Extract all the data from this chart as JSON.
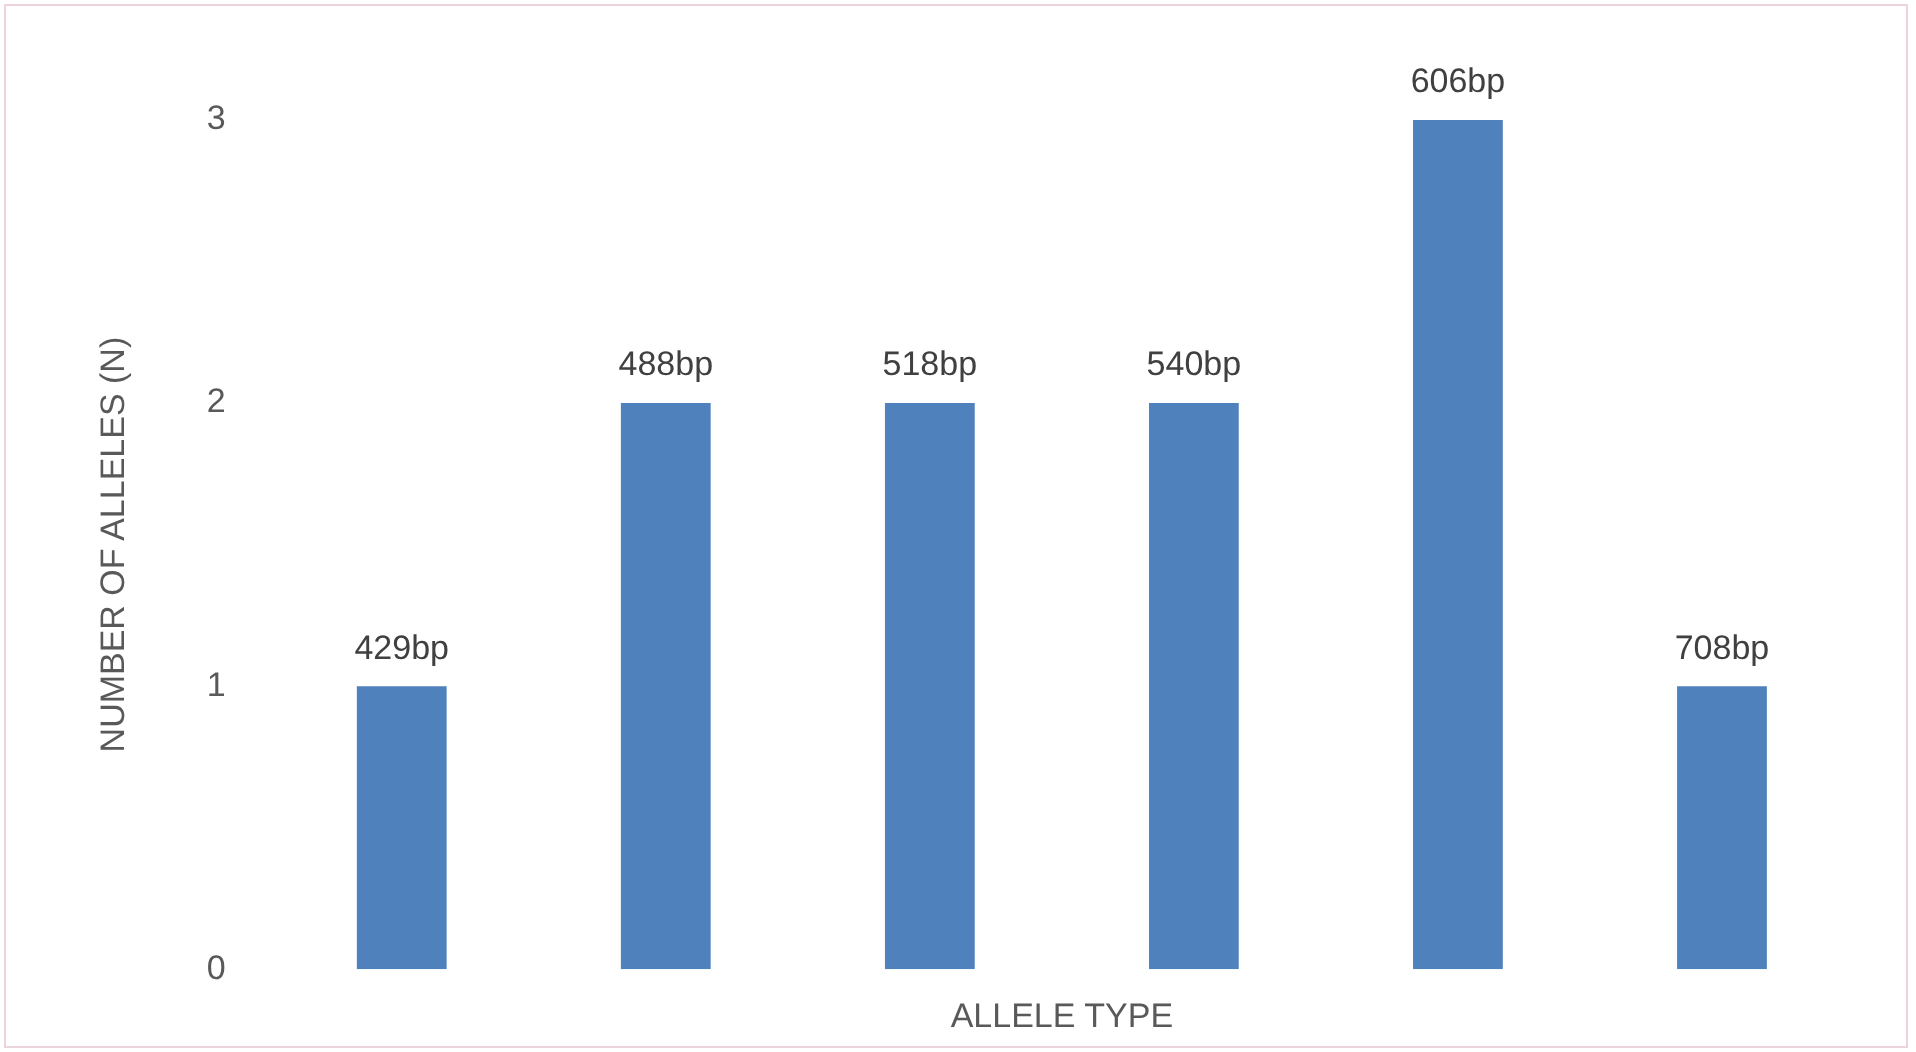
{
  "chart_data": {
    "type": "bar",
    "xlabel": "ALLELE TYPE",
    "ylabel": "NUMBER OF ALLELES (N)",
    "categories": [
      "429bp",
      "488bp",
      "518bp",
      "540bp",
      "606bp",
      "708bp"
    ],
    "values": [
      1,
      2,
      2,
      2,
      3,
      1
    ],
    "color": "#4f81bd",
    "ylim": [
      0,
      3
    ],
    "yticks": [
      0,
      1,
      2,
      3
    ],
    "grid": false,
    "tick_labels": "y"
  }
}
